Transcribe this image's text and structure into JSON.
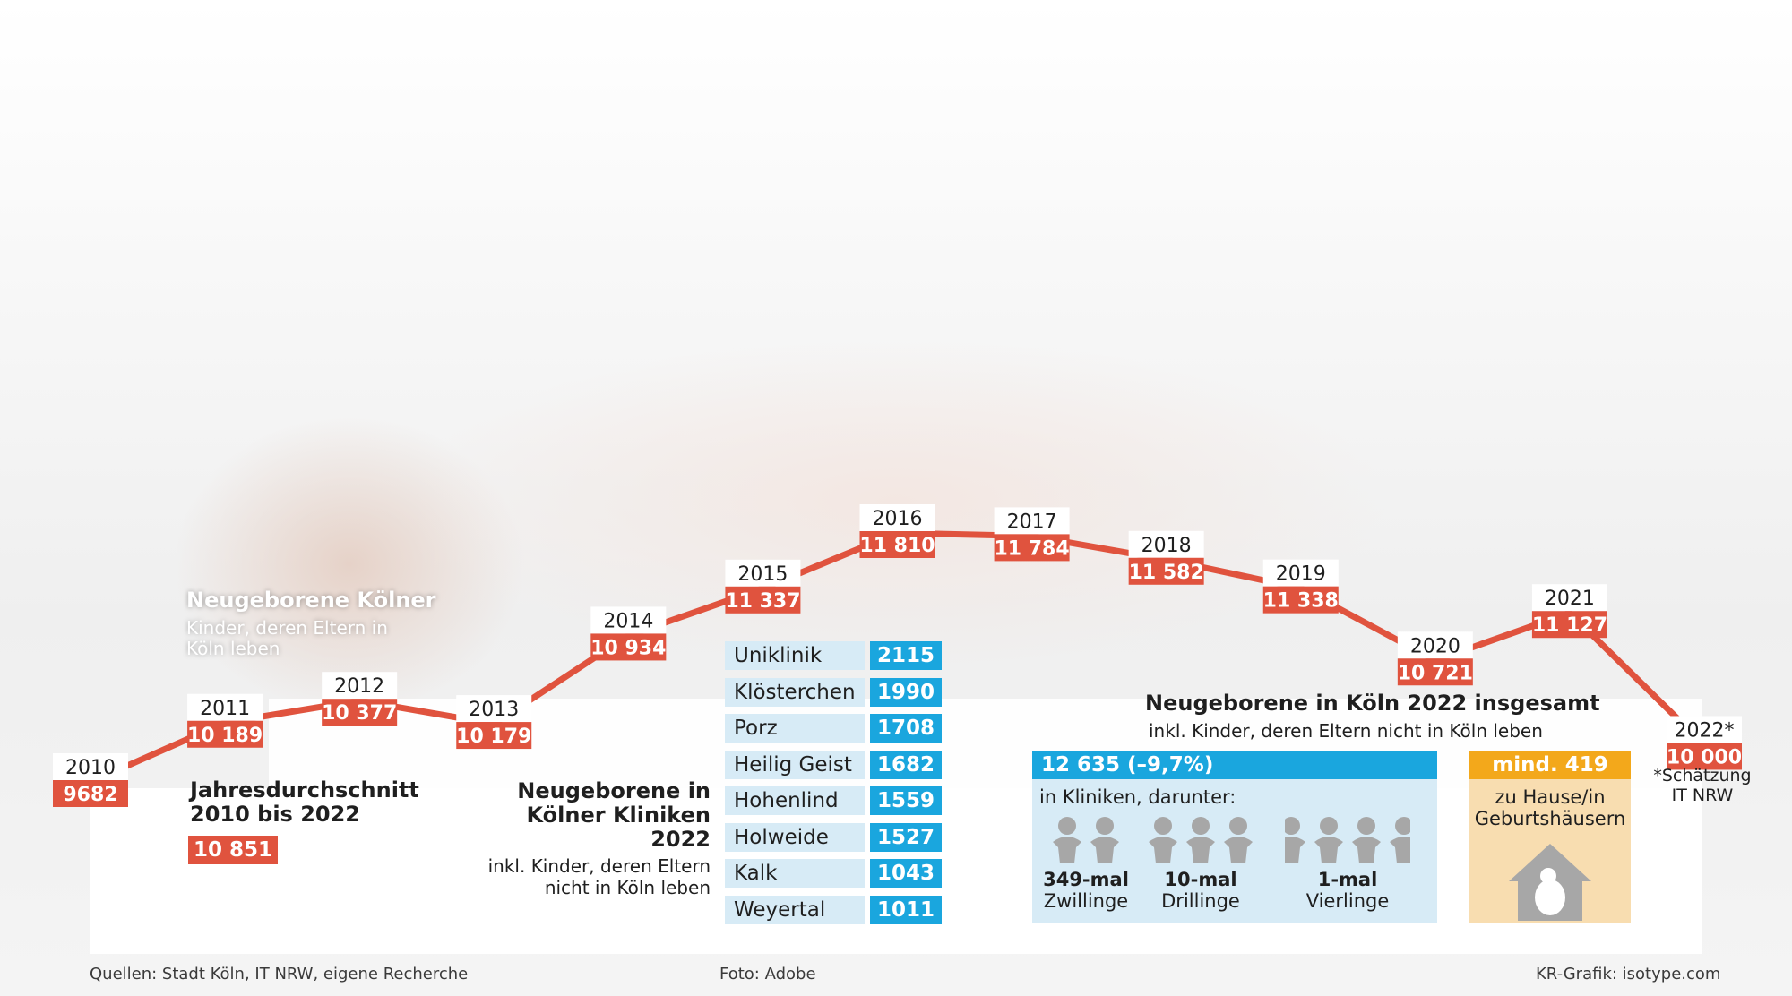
{
  "chart_data": {
    "type": "line",
    "title": "Neugeborene Kölner",
    "subtitle": "Kinder, deren Eltern in Köln leben",
    "x": [
      "2010",
      "2011",
      "2012",
      "2013",
      "2014",
      "2015",
      "2016",
      "2017",
      "2018",
      "2019",
      "2020",
      "2021",
      "2022*"
    ],
    "value_labels": [
      "9682",
      "10 189",
      "10 377",
      "10 179",
      "10 934",
      "11 337",
      "11 810",
      "11 784",
      "11 582",
      "11 338",
      "10 721",
      "11 127",
      "10 000"
    ],
    "values": [
      9682,
      10189,
      10377,
      10179,
      10934,
      11337,
      11810,
      11784,
      11582,
      11338,
      10721,
      11127,
      10000
    ],
    "color": "#e0533e"
  },
  "average": {
    "title_line1": "Jahresdurchschnitt",
    "title_line2": "2010 bis 2022",
    "value": "10 851"
  },
  "footnote": {
    "line1": "*Schätzung",
    "line2": "IT NRW"
  },
  "clinics": {
    "title_line1": "Neugeborene in",
    "title_line2": "Kölner Kliniken 2022",
    "sub_line1": "inkl. Kinder, deren Eltern",
    "sub_line2": "nicht in Köln leben",
    "rows": [
      {
        "name": "Uniklinik",
        "value": "2115"
      },
      {
        "name": "Klösterchen",
        "value": "1990"
      },
      {
        "name": "Porz",
        "value": "1708"
      },
      {
        "name": "Heilig Geist",
        "value": "1682"
      },
      {
        "name": "Hohenlind",
        "value": "1559"
      },
      {
        "name": "Holweide",
        "value": "1527"
      },
      {
        "name": "Kalk",
        "value": "1043"
      },
      {
        "name": "Weyertal",
        "value": "1011"
      }
    ]
  },
  "total": {
    "title": "Neugeborene in Köln 2022 insgesamt",
    "sub": "inkl. Kinder, deren Eltern nicht in Köln leben",
    "kliniken_value": "12 635 (–9,7%)",
    "kliniken_label": "in Kliniken, darunter:",
    "multiples": [
      {
        "count": "349-mal",
        "label": "Zwillinge",
        "figures": 2
      },
      {
        "count": "10-mal",
        "label": "Drillinge",
        "figures": 3
      },
      {
        "count": "1-mal",
        "label": "Vierlinge",
        "figures": 4
      }
    ],
    "home_value": "mind. 419",
    "home_line1": "zu Hause/in",
    "home_line2": "Geburtshäusern"
  },
  "footer": {
    "sources": "Quellen: Stadt Köln, IT NRW, eigene Recherche",
    "photo": "Foto: Adobe",
    "credit": "KR-Grafik: isotype.com"
  }
}
